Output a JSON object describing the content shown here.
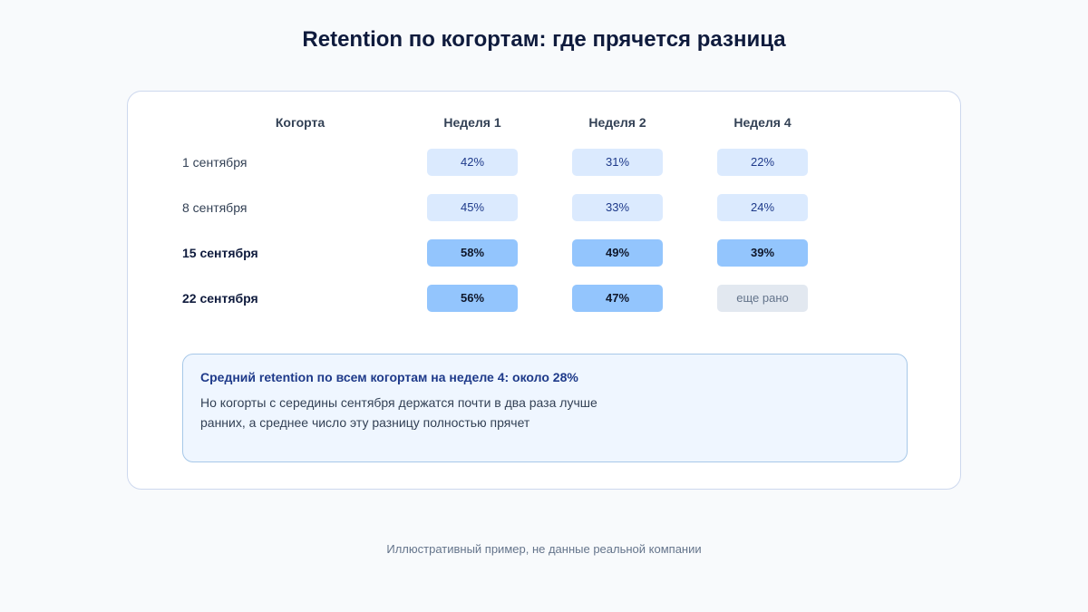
{
  "title": "Retention по когортам: где прячется разница",
  "table": {
    "header": [
      "Когорта",
      "Неделя 1",
      "Неделя 2",
      "Неделя 4"
    ],
    "rows": [
      {
        "cohort": "1 сентября",
        "emphasis": false,
        "cells": [
          "42%",
          "31%",
          "22%"
        ]
      },
      {
        "cohort": "8 сентября",
        "emphasis": false,
        "cells": [
          "45%",
          "33%",
          "24%"
        ]
      },
      {
        "cohort": "15 сентября",
        "emphasis": true,
        "cells": [
          "58%",
          "49%",
          "39%"
        ]
      },
      {
        "cohort": "22 сентября",
        "emphasis": true,
        "cells": [
          "56%",
          "47%",
          "еще рано"
        ]
      }
    ]
  },
  "callout": {
    "title": "Средний retention по всем когортам на неделе 4: около 28%",
    "lines": [
      "Но когорты с середины сентября держатся почти в два раза лучше",
      "ранних, а среднее число эту разницу полностью прячет"
    ]
  },
  "footer": "Иллюстративный пример, не данные реальной компании"
}
